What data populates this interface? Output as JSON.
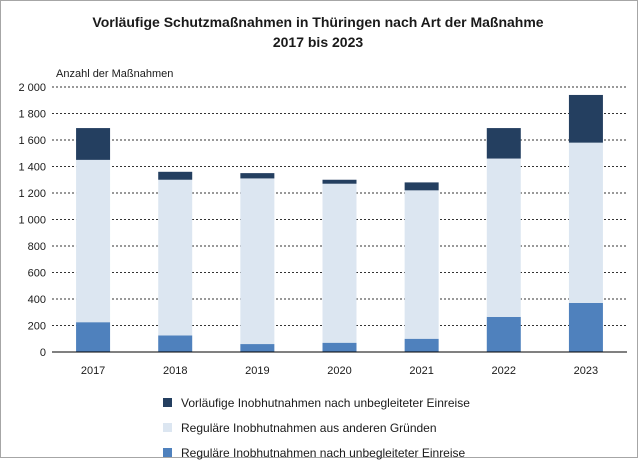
{
  "chart_data": {
    "type": "bar",
    "stacked": true,
    "title": "Vorläufige Schutzmaßnahmen in Thüringen nach Art der Maßnahme",
    "subtitle": "2017 bis 2023",
    "ylabel": "Anzahl der Maßnahmen",
    "xlabel": "",
    "ylim": [
      0,
      2000
    ],
    "yticks": [
      "0",
      "200",
      "400",
      "600",
      "800",
      "1 000",
      "1 200",
      "1 400",
      "1 600",
      "1 800",
      "2 000"
    ],
    "grid": true,
    "legend_position": "bottom",
    "categories": [
      "2017",
      "2018",
      "2019",
      "2020",
      "2021",
      "2022",
      "2023"
    ],
    "series": [
      {
        "name": "Reguläre Inobhutnahmen nach unbegleiteter Einreise",
        "color": "#4f81bd",
        "values": [
          225,
          125,
          60,
          70,
          100,
          265,
          370
        ]
      },
      {
        "name": "Reguläre Inobhutnahmen aus anderen Gründen",
        "color": "#dce6f1",
        "values": [
          1225,
          1175,
          1250,
          1200,
          1120,
          1195,
          1210
        ]
      },
      {
        "name": "Vorläufige Inobhutnahmen nach unbegleiteter Einreise",
        "color": "#243f60",
        "values": [
          240,
          60,
          40,
          30,
          60,
          230,
          360
        ]
      }
    ]
  }
}
